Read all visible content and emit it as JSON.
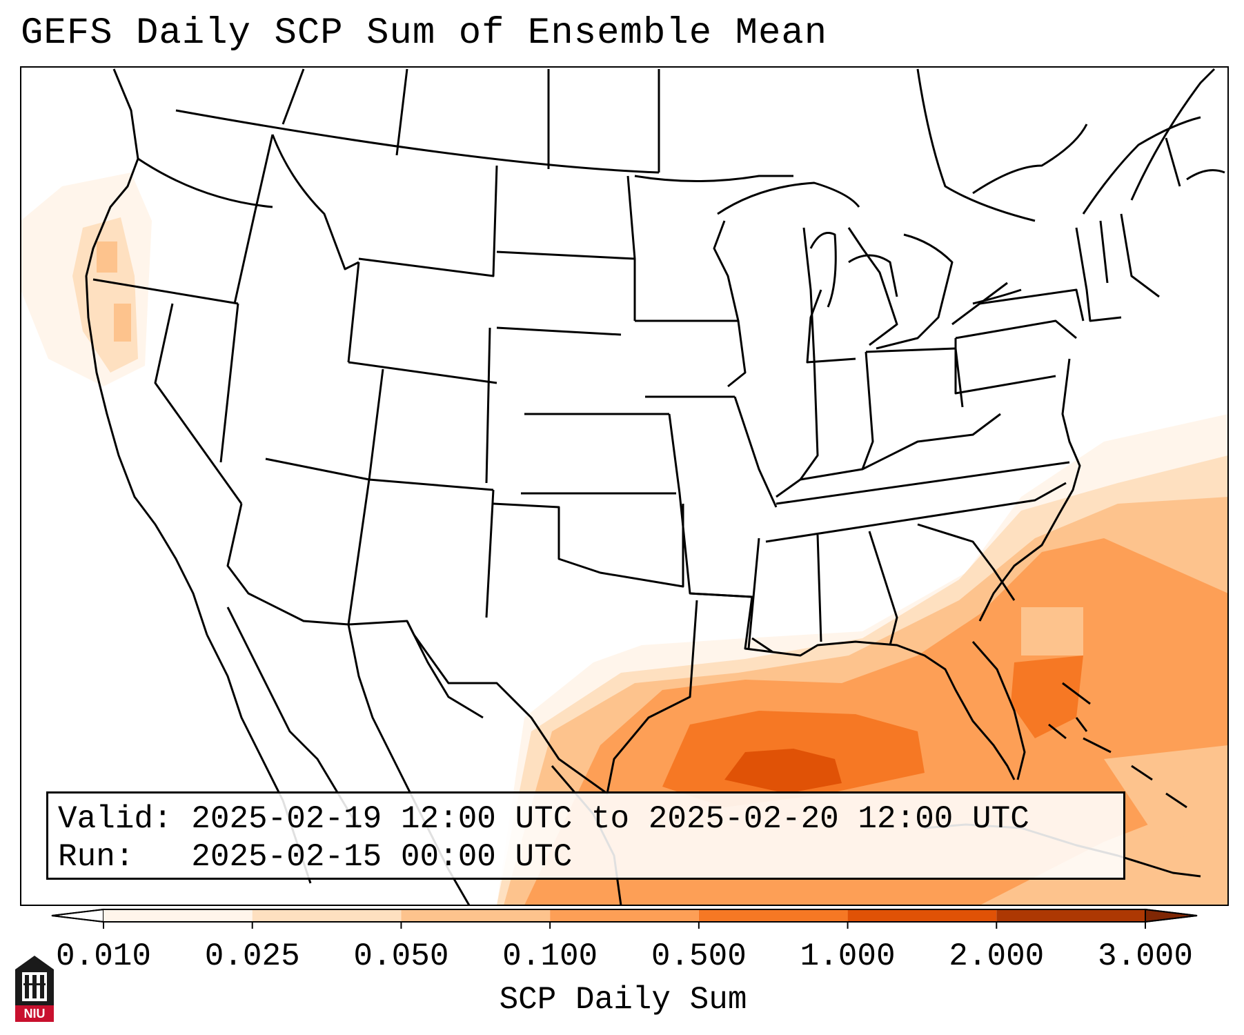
{
  "title": "GEFS Daily SCP Sum of Ensemble Mean",
  "info": {
    "valid_line": "Valid: 2025-02-19 12:00 UTC to 2025-02-20 12:00 UTC",
    "run_line": "Run:   2025-02-15 00:00 UTC"
  },
  "colorbar": {
    "label": "SCP Daily Sum",
    "ticks": [
      "0.010",
      "0.025",
      "0.050",
      "0.100",
      "0.500",
      "1.000",
      "2.000",
      "3.000"
    ],
    "colors": [
      "#fff5eb",
      "#fee0c0",
      "#fdc38d",
      "#fd9f56",
      "#f67824",
      "#e05206",
      "#ad3803"
    ],
    "under_color": "#ffffff",
    "over_color": "#7f2704",
    "extend": "both"
  },
  "map": {
    "projection": "Lambert conformal (CONUS)",
    "features": [
      "state boundaries",
      "national boundaries",
      "coastlines",
      "lakes"
    ],
    "highlight_region": "Gulf of Mexico / Southeast US coast"
  },
  "logo": {
    "text": "NIU",
    "icon": "university-building-icon"
  }
}
